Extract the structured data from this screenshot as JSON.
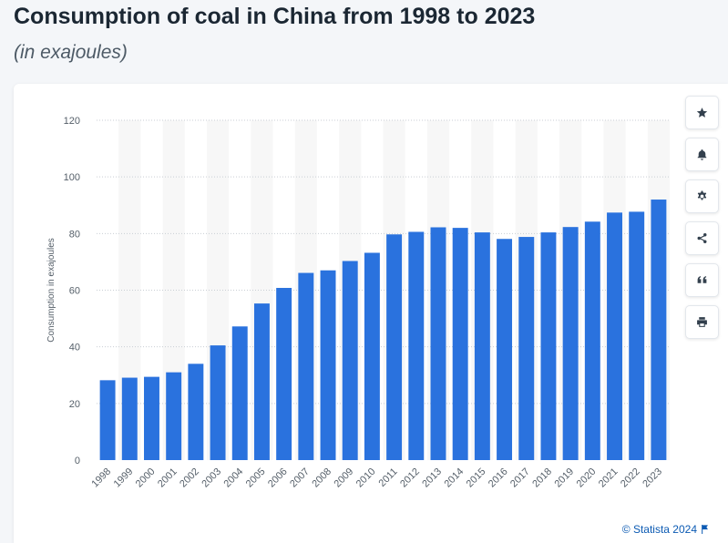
{
  "title": "Consumption of coal in China from 1998 to 2023",
  "subtitle": "(in exajoules)",
  "credit": "© Statista 2024",
  "toolbar": [
    {
      "name": "favorite-button",
      "icon": "star-icon"
    },
    {
      "name": "notification-button",
      "icon": "bell-icon"
    },
    {
      "name": "settings-button",
      "icon": "gear-icon"
    },
    {
      "name": "share-button",
      "icon": "share-icon"
    },
    {
      "name": "cite-button",
      "icon": "quote-icon"
    },
    {
      "name": "print-button",
      "icon": "printer-icon"
    }
  ],
  "chart_data": {
    "type": "bar",
    "categories": [
      "1998",
      "1999",
      "2000",
      "2001",
      "2002",
      "2003",
      "2004",
      "2005",
      "2006",
      "2007",
      "2008",
      "2009",
      "2010",
      "2011",
      "2012",
      "2013",
      "2014",
      "2015",
      "2016",
      "2017",
      "2018",
      "2019",
      "2020",
      "2021",
      "2022",
      "2023"
    ],
    "values": [
      28.2,
      29.1,
      29.4,
      31.0,
      34.0,
      40.5,
      47.2,
      55.3,
      60.8,
      66.1,
      67.0,
      70.3,
      73.2,
      79.7,
      80.6,
      82.2,
      82.0,
      80.4,
      78.1,
      78.8,
      80.4,
      82.3,
      84.2,
      87.4,
      87.7,
      92.0
    ],
    "ylabel": "Consumption in exajoules",
    "xlabel": "",
    "ylim": [
      0,
      120
    ],
    "yticks": [
      0,
      20,
      40,
      60,
      80,
      100,
      120
    ],
    "bar_color": "#2a72de",
    "grid": true,
    "legend": "none"
  }
}
